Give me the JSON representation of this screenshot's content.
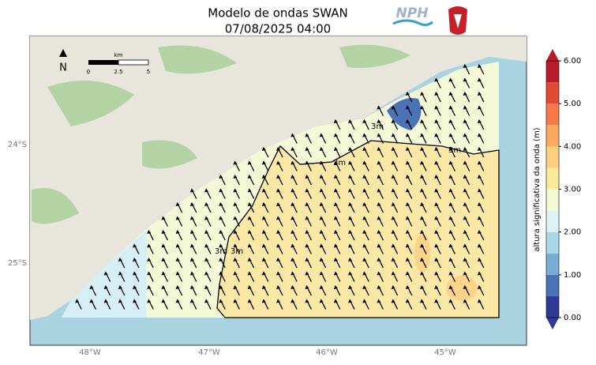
{
  "header": {
    "title": "Modelo de ondas SWAN",
    "subtitle": "07/08/2025 04:00",
    "logo_text": "NPH"
  },
  "map": {
    "lat_labels": [
      "24°S",
      "25°S"
    ],
    "lon_labels": [
      "48°W",
      "47°W",
      "46°W",
      "45°W"
    ],
    "north_label": "N",
    "scale_bar": {
      "unit": "km",
      "labels": [
        "0",
        "2.5",
        "5"
      ]
    },
    "contour_labels": [
      "3m",
      "3m",
      "3m",
      "3m",
      "3m"
    ]
  },
  "colorbar": {
    "label": "altura significativa da onda (m)",
    "ticks": [
      "0.00",
      "1.00",
      "2.00",
      "3.00",
      "4.00",
      "5.00",
      "6.00"
    ],
    "colors": [
      "#2f3a95",
      "#4a72b5",
      "#77aed3",
      "#abd8e9",
      "#dff2f6",
      "#f4fad5",
      "#fde99a",
      "#fdcf7e",
      "#fca85f",
      "#f47a4a",
      "#e04a35",
      "#b81c2a"
    ]
  }
}
